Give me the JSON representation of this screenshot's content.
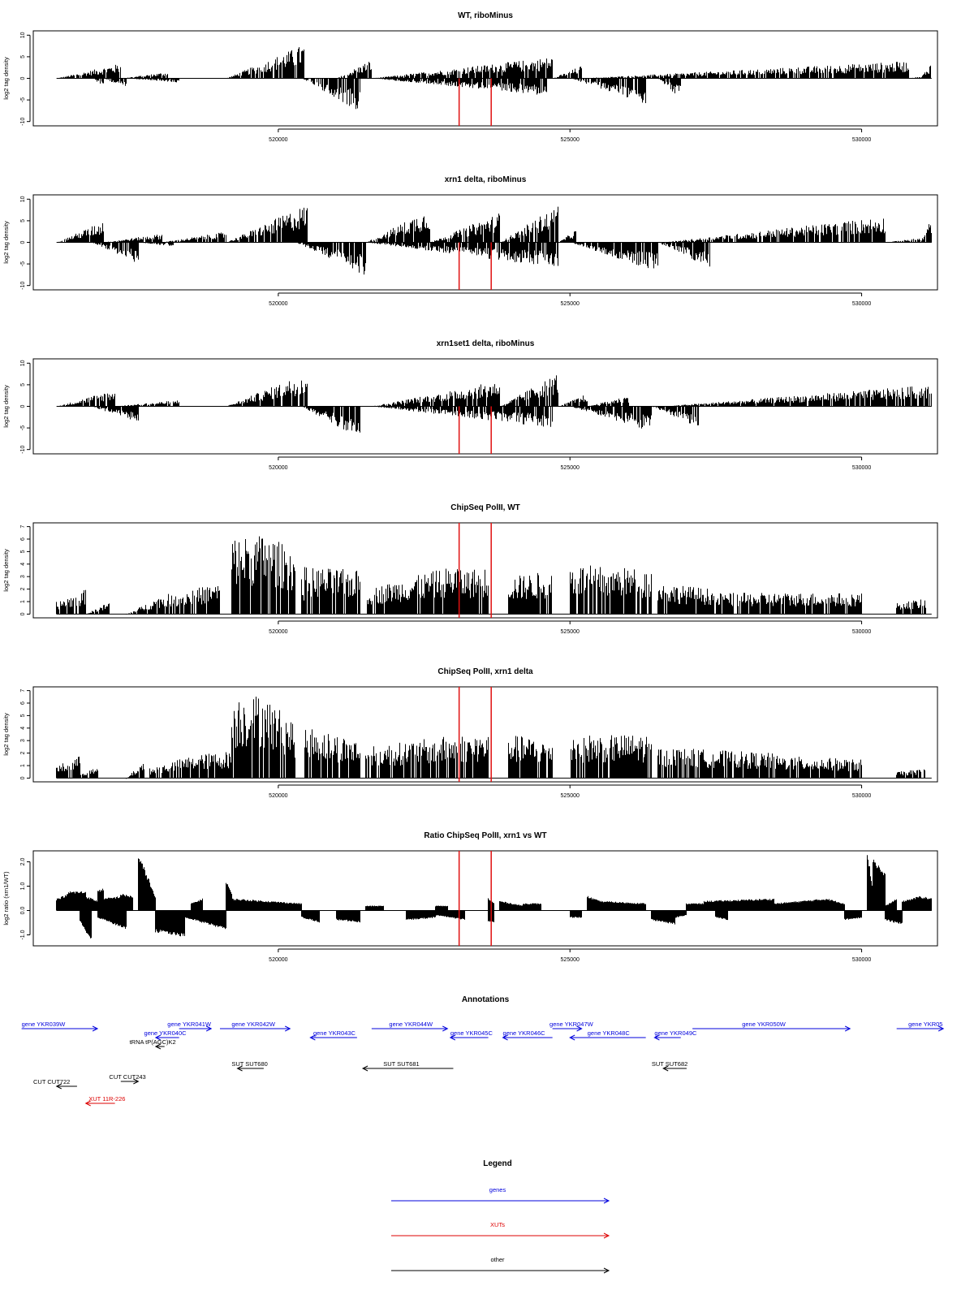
{
  "colors": {
    "marker": "#e01010",
    "gene": "#0000dd",
    "xut": "#dd0000",
    "other": "#000000",
    "trace": "#000000"
  },
  "chart_data": [
    {
      "type": "bar",
      "title": "WT, riboMinus",
      "ylabel": "log2 tag density",
      "ylim": [
        -11,
        11
      ],
      "yticks": [
        10,
        5,
        0,
        -5,
        -10
      ],
      "xlim": [
        515800,
        531300
      ],
      "xticks": [
        520000,
        525000,
        530000
      ],
      "markers": [
        523100,
        523650
      ],
      "profile": {
        "pos": [
          [
            516200,
            517300,
            0,
            3.5
          ],
          [
            517300,
            518100,
            0,
            1.5
          ],
          [
            519100,
            520450,
            0,
            8
          ],
          [
            521000,
            521600,
            0,
            4.5
          ],
          [
            521600,
            524700,
            0,
            5
          ],
          [
            523800,
            524100,
            0,
            7
          ],
          [
            524700,
            525200,
            0,
            3
          ],
          [
            525200,
            530800,
            0,
            4
          ],
          [
            530800,
            531000,
            0,
            0.4
          ],
          [
            531000,
            531200,
            0,
            4
          ]
        ],
        "neg": [
          [
            516800,
            517000,
            0,
            -2
          ],
          [
            517000,
            517400,
            0,
            -2.5
          ],
          [
            517400,
            518300,
            0,
            -1
          ],
          [
            520400,
            521400,
            0,
            -8
          ],
          [
            521600,
            524600,
            0,
            -4
          ],
          [
            525000,
            526300,
            0,
            -6
          ],
          [
            526500,
            526900,
            0,
            -5
          ]
        ]
      }
    },
    {
      "type": "bar",
      "title": "xrn1 delta, riboMinus",
      "ylabel": "log2 tag density",
      "ylim": [
        -11,
        11
      ],
      "yticks": [
        10,
        5,
        0,
        -5,
        -10
      ],
      "xlim": [
        515800,
        531300
      ],
      "xticks": [
        520000,
        525000,
        530000
      ],
      "markers": [
        523100,
        523650
      ],
      "profile": {
        "pos": [
          [
            516200,
            517000,
            0,
            5
          ],
          [
            517000,
            518000,
            0,
            2
          ],
          [
            518000,
            519100,
            0,
            2.5
          ],
          [
            519100,
            520500,
            0,
            9
          ],
          [
            521500,
            522600,
            0,
            8
          ],
          [
            522600,
            523800,
            0,
            7
          ],
          [
            523800,
            524800,
            0,
            9
          ],
          [
            524800,
            525100,
            0,
            3
          ],
          [
            526600,
            530400,
            0,
            6
          ],
          [
            530400,
            531000,
            0,
            1
          ],
          [
            531000,
            531200,
            0,
            6
          ]
        ],
        "neg": [
          [
            516800,
            517600,
            0,
            -5
          ],
          [
            517600,
            518200,
            0,
            -1
          ],
          [
            520300,
            521500,
            0,
            -8
          ],
          [
            521500,
            524800,
            0,
            -6
          ],
          [
            525000,
            526500,
            0,
            -7
          ],
          [
            526500,
            527400,
            0,
            -6
          ]
        ]
      }
    },
    {
      "type": "bar",
      "title": "xrn1set1 delta, riboMinus",
      "ylabel": "log2 tag density",
      "ylim": [
        -11,
        11
      ],
      "yticks": [
        10,
        5,
        0,
        -5,
        -10
      ],
      "xlim": [
        515800,
        531300
      ],
      "xticks": [
        520000,
        525000,
        530000
      ],
      "markers": [
        523100,
        523650
      ],
      "profile": {
        "pos": [
          [
            516200,
            517200,
            0,
            4
          ],
          [
            517200,
            518300,
            0,
            1.5
          ],
          [
            519100,
            520500,
            0,
            8
          ],
          [
            521600,
            523800,
            0,
            6
          ],
          [
            523800,
            524800,
            0,
            8
          ],
          [
            524800,
            525300,
            0,
            3
          ],
          [
            525300,
            526000,
            0,
            2.5
          ],
          [
            526600,
            531200,
            0,
            5
          ]
        ],
        "neg": [
          [
            516800,
            517600,
            0,
            -4
          ],
          [
            520400,
            521400,
            0,
            -8
          ],
          [
            521600,
            524700,
            0,
            -5
          ],
          [
            525000,
            526400,
            0,
            -6
          ],
          [
            526400,
            527200,
            0,
            -5
          ]
        ]
      }
    },
    {
      "type": "bar",
      "title": "ChipSeq PolII, WT",
      "ylabel": "log2 tag density",
      "ylim": [
        -0.3,
        7.3
      ],
      "yticks": [
        0,
        1,
        2,
        3,
        4,
        5,
        6,
        7
      ],
      "xlim": [
        515800,
        531300
      ],
      "xticks": [
        520000,
        525000,
        530000
      ],
      "markers": [
        523100,
        523650
      ],
      "profile": {
        "pos": [
          [
            516200,
            516700,
            1,
            2
          ],
          [
            516700,
            517100,
            0,
            1
          ],
          [
            517400,
            518000,
            0,
            1.5
          ],
          [
            518000,
            519000,
            1.5,
            2.5
          ],
          [
            519200,
            519800,
            6.2,
            6.4
          ],
          [
            519800,
            520300,
            6.4,
            5
          ],
          [
            520400,
            520450,
            3,
            3
          ],
          [
            520450,
            521400,
            3.8,
            3.5
          ],
          [
            521500,
            522300,
            2,
            3
          ],
          [
            522300,
            523100,
            3,
            4
          ],
          [
            523100,
            523600,
            3.5,
            3.8
          ],
          [
            523950,
            524700,
            3,
            3.5
          ],
          [
            525000,
            526400,
            4,
            3.6
          ],
          [
            526500,
            527500,
            2.5,
            2
          ],
          [
            527500,
            530000,
            1.7,
            1.7
          ],
          [
            530600,
            531100,
            1,
            1.2
          ]
        ],
        "neg": []
      }
    },
    {
      "type": "bar",
      "title": "ChipSeq PolII, xrn1 delta",
      "ylabel": "log2 tag density",
      "ylim": [
        -0.3,
        7.3
      ],
      "yticks": [
        0,
        1,
        2,
        3,
        4,
        5,
        6,
        7
      ],
      "xlim": [
        515800,
        531300
      ],
      "xticks": [
        520000,
        525000,
        530000
      ],
      "markers": [
        523100,
        523650
      ],
      "profile": {
        "pos": [
          [
            516200,
            516600,
            1,
            1.8
          ],
          [
            516600,
            516900,
            0.5,
            0.8
          ],
          [
            517400,
            517700,
            0,
            1.5
          ],
          [
            517800,
            518500,
            0.8,
            1.8
          ],
          [
            518500,
            519200,
            1.8,
            2.2
          ],
          [
            519200,
            519800,
            6.6,
            6.8
          ],
          [
            519800,
            520300,
            6.4,
            4.5
          ],
          [
            520450,
            521400,
            4.2,
            3
          ],
          [
            521500,
            522300,
            2.5,
            3
          ],
          [
            522300,
            523100,
            3,
            3.5
          ],
          [
            523100,
            523600,
            3.5,
            3.5
          ],
          [
            523950,
            524700,
            3.5,
            3
          ],
          [
            525000,
            526400,
            3.5,
            3.5
          ],
          [
            526500,
            528500,
            2.5,
            2
          ],
          [
            528500,
            530000,
            1.8,
            1.5
          ],
          [
            530600,
            531100,
            0.5,
            0.8
          ]
        ],
        "neg": []
      }
    },
    {
      "type": "area",
      "title": "Ratio ChipSeq PolII, xrn1 vs WT",
      "ylabel": "log2 ratio (xrn1/WT)",
      "ylim": [
        -1.45,
        2.45
      ],
      "yticks": [
        2,
        1,
        0,
        -1
      ],
      "yticklabels": [
        "2.0",
        "1.0",
        "0.0",
        "-1.0"
      ],
      "xlim": [
        515800,
        531300
      ],
      "xticks": [
        520000,
        525000,
        530000
      ],
      "markers": [
        523100,
        523650
      ],
      "profile": {
        "pos": [
          [
            516200,
            516400,
            0.5,
            0.7
          ],
          [
            516400,
            516700,
            0.8,
            0.8
          ],
          [
            516700,
            516900,
            0.6,
            0.4
          ],
          [
            516900,
            517000,
            0.9,
            0.9
          ],
          [
            517000,
            517300,
            0.5,
            0.6
          ],
          [
            517300,
            517500,
            0.7,
            0.6
          ],
          [
            517600,
            517800,
            2.3,
            1.2
          ],
          [
            517800,
            517900,
            1.1,
            0.5
          ],
          [
            518500,
            518700,
            0.3,
            0.5
          ],
          [
            519100,
            519200,
            1.3,
            0.7
          ],
          [
            519200,
            520400,
            0.5,
            0.3
          ],
          [
            521500,
            521800,
            0.2,
            0.2
          ],
          [
            522700,
            522900,
            0.2,
            0.2
          ],
          [
            523600,
            523700,
            0.5,
            0.3
          ],
          [
            523800,
            524200,
            0.4,
            0.2
          ],
          [
            524200,
            524500,
            0.3,
            0.3
          ],
          [
            525300,
            525500,
            0.6,
            0.4
          ],
          [
            525500,
            526300,
            0.4,
            0.3
          ],
          [
            527000,
            527300,
            0.3,
            0.3
          ],
          [
            527300,
            528500,
            0.4,
            0.5
          ],
          [
            528500,
            529400,
            0.3,
            0.5
          ],
          [
            529400,
            529700,
            0.5,
            0.3
          ],
          [
            530100,
            530200,
            2.4,
            0.6
          ],
          [
            530200,
            530400,
            2.2,
            1.5
          ],
          [
            530400,
            530600,
            0.2,
            0.5
          ],
          [
            530700,
            531000,
            0.4,
            0.6
          ],
          [
            531000,
            531200,
            0.6,
            0.5
          ]
        ],
        "neg": [
          [
            516600,
            516800,
            -0.5,
            -1.3
          ],
          [
            516900,
            517400,
            -0.3,
            -0.8
          ],
          [
            517900,
            518400,
            -0.9,
            -1.1
          ],
          [
            518400,
            519100,
            -0.3,
            -0.8
          ],
          [
            520400,
            520700,
            -0.3,
            -0.5
          ],
          [
            521000,
            521400,
            -0.4,
            -0.5
          ],
          [
            522200,
            522700,
            -0.4,
            -0.3
          ],
          [
            522700,
            523200,
            -0.2,
            -0.4
          ],
          [
            523600,
            523700,
            -0.5,
            -0.5
          ],
          [
            525000,
            525200,
            -0.3,
            -0.3
          ],
          [
            526400,
            526800,
            -0.4,
            -0.6
          ],
          [
            526800,
            527000,
            -0.3,
            -0.2
          ],
          [
            527500,
            527700,
            -0.3,
            -0.4
          ],
          [
            529700,
            530000,
            -0.4,
            -0.3
          ],
          [
            530400,
            530700,
            -0.4,
            -0.6
          ]
        ]
      }
    }
  ],
  "annotations": {
    "title": "Annotations",
    "items": [
      {
        "label": "gene YKR039W",
        "color": "gene",
        "row": 0,
        "x1": 515600,
        "x2": 516900,
        "dir": "right",
        "lx": 515600,
        "lside": "above"
      },
      {
        "label": "gene YKR040C",
        "color": "gene",
        "row": 1,
        "x1": 517900,
        "x2": 518300,
        "dir": "left",
        "lx": 517700,
        "lside": "above"
      },
      {
        "label": "gene YKR041W",
        "color": "gene",
        "row": 0,
        "x1": 518300,
        "x2": 518850,
        "dir": "right",
        "lx": 518100,
        "lside": "above"
      },
      {
        "label": "tRNA tP(AGC)K2",
        "color": "other",
        "row": 2,
        "x1": 517900,
        "x2": 518050,
        "dir": "left",
        "lx": 517450,
        "lside": "above"
      },
      {
        "label": "gene YKR042W",
        "color": "gene",
        "row": 0,
        "x1": 519000,
        "x2": 520200,
        "dir": "right",
        "lx": 519200,
        "lside": "above"
      },
      {
        "label": "gene YKR043C",
        "color": "gene",
        "row": 1,
        "x1": 520550,
        "x2": 521350,
        "dir": "left",
        "lx": 520600,
        "lside": "above"
      },
      {
        "label": "gene YKR044W",
        "color": "gene",
        "row": 0,
        "x1": 521600,
        "x2": 522900,
        "dir": "right",
        "lx": 521900,
        "lside": "above"
      },
      {
        "label": "gene YKR045C",
        "color": "gene",
        "row": 1,
        "x1": 522950,
        "x2": 523600,
        "dir": "left",
        "lx": 522950,
        "lside": "above"
      },
      {
        "label": "gene YKR046C",
        "color": "gene",
        "row": 1,
        "x1": 523850,
        "x2": 524700,
        "dir": "left",
        "lx": 523850,
        "lside": "above"
      },
      {
        "label": "gene YKR047W",
        "color": "gene",
        "row": 0,
        "x1": 524700,
        "x2": 525200,
        "dir": "right",
        "lx": 524650,
        "lside": "above"
      },
      {
        "label": "gene YKR048C",
        "color": "gene",
        "row": 1,
        "x1": 525000,
        "x2": 526300,
        "dir": "left",
        "lx": 525300,
        "lside": "above"
      },
      {
        "label": "gene YKR049C",
        "color": "gene",
        "row": 1,
        "x1": 526450,
        "x2": 526900,
        "dir": "left",
        "lx": 526450,
        "lside": "above"
      },
      {
        "label": "gene YKR050W",
        "color": "gene",
        "row": 0,
        "x1": 527100,
        "x2": 529800,
        "dir": "right",
        "lx": 527950,
        "lside": "above"
      },
      {
        "label": "gene YKR05",
        "color": "gene",
        "row": 0,
        "x1": 530600,
        "x2": 531400,
        "dir": "right",
        "lx": 530800,
        "lside": "above"
      },
      {
        "label": "SUT SUT680",
        "color": "other",
        "row": 3,
        "x1": 519300,
        "x2": 519750,
        "dir": "left",
        "lx": 519200,
        "lside": "above"
      },
      {
        "label": "SUT SUT681",
        "color": "other",
        "row": 3,
        "x1": 521450,
        "x2": 523000,
        "dir": "left",
        "lx": 521800,
        "lside": "above"
      },
      {
        "label": "SUT SUT682",
        "color": "other",
        "row": 3,
        "x1": 526600,
        "x2": 527000,
        "dir": "left",
        "lx": 526400,
        "lside": "above"
      },
      {
        "label": "CUT CUT243",
        "color": "other",
        "row": 4,
        "x1": 517300,
        "x2": 517600,
        "dir": "right",
        "lx": 517100,
        "lside": "above"
      },
      {
        "label": "CUT CUT722",
        "color": "other",
        "row": 5,
        "x1": 516200,
        "x2": 516550,
        "dir": "left",
        "lx": 515800,
        "lside": "above"
      },
      {
        "label": "XUT 11R-226",
        "color": "xut",
        "row": 6,
        "x1": 516700,
        "x2": 517200,
        "dir": "left",
        "lx": 516750,
        "lside": "above"
      }
    ]
  },
  "legend": {
    "title": "Legend",
    "entries": [
      {
        "label": "genes",
        "color": "gene"
      },
      {
        "label": "XUTs",
        "color": "xut"
      },
      {
        "label": "other",
        "color": "other"
      }
    ]
  }
}
